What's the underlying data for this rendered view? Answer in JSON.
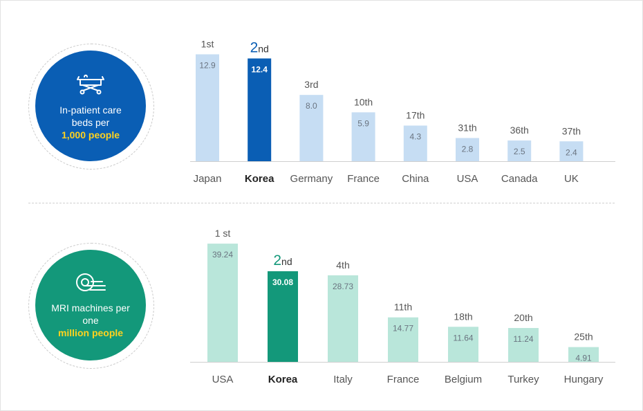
{
  "colors": {
    "beds_circle": "#0a5eb4",
    "beds_bar": "#c6ddf3",
    "beds_highlight": "#0a5eb4",
    "mri_circle": "#13987a",
    "mri_bar": "#b9e6da",
    "mri_highlight": "#13987a",
    "highlight_text": "#ffd21f",
    "value_text": "#6a7480",
    "axis_text": "#555555"
  },
  "panels": {
    "beds": {
      "icon": "hospital-bed-icon",
      "line1": "In-patient care",
      "line2": "beds per",
      "highlight": "1,000 people"
    },
    "mri": {
      "icon": "mri-scanner-icon",
      "line1": "MRI machines per",
      "line2": "one",
      "highlight": "million people"
    }
  },
  "chart_data": [
    {
      "type": "bar",
      "categories": [
        "Japan",
        "Korea",
        "Germany",
        "France",
        "China",
        "USA",
        "Canada",
        "UK"
      ],
      "values": [
        12.9,
        12.4,
        8.0,
        5.9,
        4.3,
        2.8,
        2.5,
        2.4
      ],
      "value_labels": [
        "12.9",
        "12.4",
        "8.0",
        "5.9",
        "4.3",
        "2.8",
        "2.5",
        "2.4"
      ],
      "rank_labels": [
        "1st",
        "2nd",
        "3rd",
        "10th",
        "17th",
        "31th",
        "36th",
        "37th"
      ],
      "highlight_index": 1,
      "highlight_rank": {
        "num": "2",
        "suffix": "nd"
      },
      "ylim": [
        0,
        13.4
      ]
    },
    {
      "type": "bar",
      "categories": [
        "USA",
        "Korea",
        "Italy",
        "France",
        "Belgium",
        "Turkey",
        "Hungary"
      ],
      "values": [
        39.24,
        30.08,
        28.73,
        14.77,
        11.64,
        11.24,
        4.91
      ],
      "value_labels": [
        "39.24",
        "30.08",
        "28.73",
        "14.77",
        "11.64",
        "11.24",
        "4.91"
      ],
      "rank_labels": [
        "1 st",
        "2nd",
        "4th",
        "11th",
        "18th",
        "20th",
        "25th"
      ],
      "highlight_index": 1,
      "highlight_rank": {
        "num": "2",
        "suffix": "nd"
      },
      "ylim": [
        0,
        40.3
      ]
    }
  ]
}
